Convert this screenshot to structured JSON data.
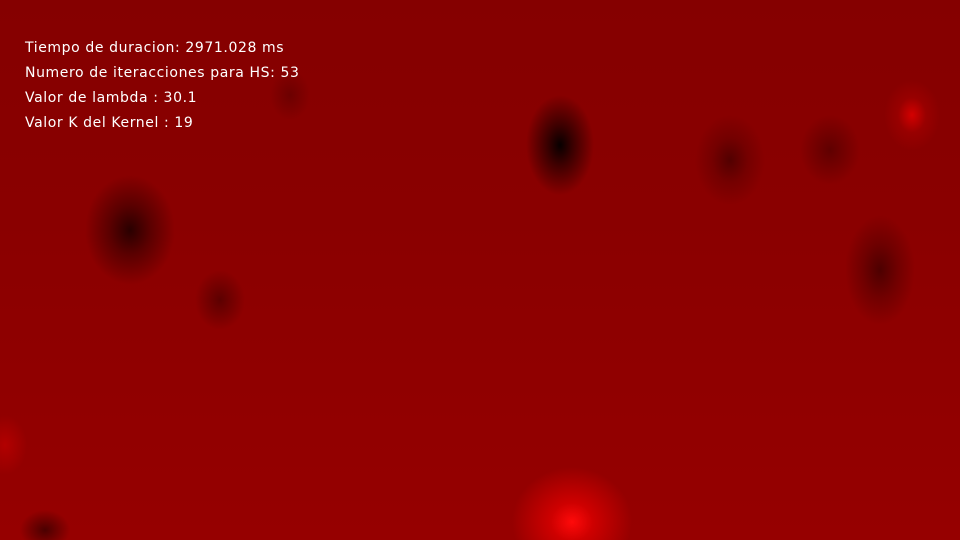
{
  "overlay": {
    "duration_line": "Tiempo de duracion: 2971.028 ms",
    "iterations_line": "Numero de iteracciones para HS: 53",
    "lambda_line": "Valor de lambda : 30.1",
    "kernel_line": "Valor K del Kernel : 19"
  },
  "colors": {
    "background": "#870000",
    "text": "#ffffff",
    "bright_spot": "#ff0a0a",
    "dark_spot": "#000000"
  }
}
